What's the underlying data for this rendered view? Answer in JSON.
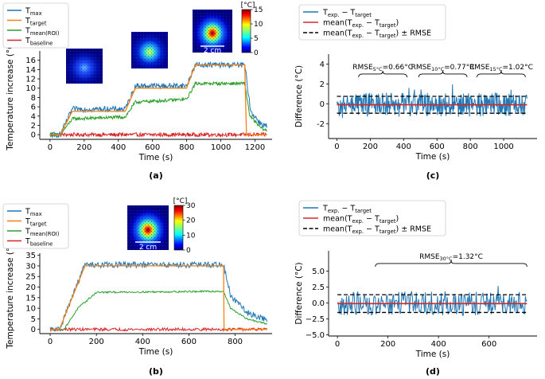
{
  "chart_data": [
    {
      "id": "a",
      "type": "line",
      "panel_label": "(a)",
      "xlabel": "Time (s)",
      "ylabel": "Temperature increase (°C)",
      "xlim": [
        -60,
        1300
      ],
      "ylim": [
        -1,
        18
      ],
      "xticks": [
        0,
        200,
        400,
        600,
        800,
        1000,
        1200
      ],
      "yticks": [
        0,
        2,
        4,
        6,
        8,
        10,
        12,
        14,
        16
      ],
      "legend": [
        {
          "label": "T",
          "sub": "max",
          "color": "#1f77b4"
        },
        {
          "label": "T",
          "sub": "target",
          "color": "#ff7f0e"
        },
        {
          "label": "T",
          "sub": "mean(ROI)",
          "color": "#2ca02c"
        },
        {
          "label": "T",
          "sub": "baseline",
          "color": "#d62728"
        }
      ],
      "series": [
        {
          "name": "T_target",
          "color": "#ff7f0e",
          "noise": 0,
          "points": [
            [
              0,
              0
            ],
            [
              60,
              0
            ],
            [
              130,
              5
            ],
            [
              440,
              5
            ],
            [
              500,
              10
            ],
            [
              800,
              10
            ],
            [
              850,
              15
            ],
            [
              1140,
              15
            ],
            [
              1150,
              0
            ],
            [
              1270,
              0
            ]
          ]
        },
        {
          "name": "T_max",
          "color": "#1f77b4",
          "noise": 0.6,
          "points": [
            [
              0,
              0
            ],
            [
              60,
              0
            ],
            [
              130,
              5.5
            ],
            [
              440,
              5.5
            ],
            [
              500,
              10.5
            ],
            [
              800,
              10.5
            ],
            [
              850,
              15
            ],
            [
              1140,
              15
            ],
            [
              1175,
              5
            ],
            [
              1230,
              2.5
            ],
            [
              1270,
              1.8
            ]
          ]
        },
        {
          "name": "T_mean(ROI)",
          "color": "#2ca02c",
          "noise": 0.35,
          "points": [
            [
              0,
              0
            ],
            [
              60,
              0
            ],
            [
              130,
              3.4
            ],
            [
              440,
              3.8
            ],
            [
              500,
              7
            ],
            [
              800,
              7.6
            ],
            [
              850,
              11
            ],
            [
              1140,
              11
            ],
            [
              1170,
              4
            ],
            [
              1230,
              1.6
            ],
            [
              1270,
              0.8
            ]
          ]
        },
        {
          "name": "T_baseline",
          "color": "#d62728",
          "noise": 0.4,
          "points": [
            [
              0,
              0
            ],
            [
              1270,
              0
            ]
          ]
        }
      ],
      "colorbar": {
        "unit": "[°C]",
        "ticks": [
          0,
          5,
          10,
          15
        ],
        "max": 15
      },
      "thumbnails": [
        {
          "intensity": 0.3
        },
        {
          "intensity": 0.62
        },
        {
          "intensity": 1.0,
          "scalebar": "2 cm"
        }
      ]
    },
    {
      "id": "b",
      "type": "line",
      "panel_label": "(b)",
      "xlabel": "Time (s)",
      "ylabel": "Temperature increase (°C)",
      "xlim": [
        -45,
        960
      ],
      "ylim": [
        -2,
        36
      ],
      "xticks": [
        0,
        200,
        400,
        600,
        800
      ],
      "yticks": [
        0,
        5,
        10,
        15,
        20,
        25,
        30,
        35
      ],
      "legend": [
        {
          "label": "T",
          "sub": "max",
          "color": "#1f77b4"
        },
        {
          "label": "T",
          "sub": "target",
          "color": "#ff7f0e"
        },
        {
          "label": "T",
          "sub": "mean(ROI)",
          "color": "#2ca02c"
        },
        {
          "label": "T",
          "sub": "baseline",
          "color": "#d62728"
        }
      ],
      "series": [
        {
          "name": "T_target",
          "color": "#ff7f0e",
          "noise": 0,
          "points": [
            [
              0,
              0
            ],
            [
              40,
              0
            ],
            [
              150,
              30
            ],
            [
              750,
              30
            ],
            [
              752,
              0
            ],
            [
              940,
              0
            ]
          ]
        },
        {
          "name": "T_max",
          "color": "#1f77b4",
          "noise": 1.4,
          "points": [
            [
              0,
              0
            ],
            [
              40,
              0
            ],
            [
              150,
              30.5
            ],
            [
              750,
              30.5
            ],
            [
              780,
              16
            ],
            [
              850,
              8
            ],
            [
              940,
              4.5
            ]
          ]
        },
        {
          "name": "T_mean(ROI)",
          "color": "#2ca02c",
          "noise": 0.4,
          "points": [
            [
              0,
              0
            ],
            [
              60,
              0
            ],
            [
              120,
              10
            ],
            [
              200,
              17.5
            ],
            [
              750,
              18
            ],
            [
              780,
              10
            ],
            [
              850,
              5
            ],
            [
              940,
              2.5
            ]
          ]
        },
        {
          "name": "T_baseline",
          "color": "#d62728",
          "noise": 0.7,
          "points": [
            [
              0,
              0
            ],
            [
              940,
              0
            ]
          ]
        }
      ],
      "colorbar": {
        "unit": "[°C]",
        "ticks": [
          0,
          10,
          20,
          30
        ],
        "max": 30
      },
      "thumbnails": [
        {
          "intensity": 1.0,
          "scalebar": "2 cm"
        }
      ]
    },
    {
      "id": "c",
      "type": "line",
      "panel_label": "(c)",
      "xlabel": "Time (s)",
      "ylabel": "Difference (°C)",
      "xlim": [
        -50,
        1200
      ],
      "ylim": [
        -3.5,
        5
      ],
      "xticks": [
        0,
        200,
        400,
        600,
        800,
        1000
      ],
      "yticks": [
        -2,
        0,
        2,
        4
      ],
      "legend": [
        {
          "text": "T",
          "parts": [
            {
              "t": "T"
            },
            {
              "t": "exp.",
              "sub": true
            },
            {
              "t": " − T"
            },
            {
              "t": "target",
              "sub": true
            }
          ],
          "color": "#1f77b4",
          "style": "solid"
        },
        {
          "parts": [
            {
              "t": "mean(T"
            },
            {
              "t": "exp.",
              "sub": true
            },
            {
              "t": " − T"
            },
            {
              "t": "target",
              "sub": true
            },
            {
              "t": ")"
            }
          ],
          "color": "#d62728",
          "style": "solid"
        },
        {
          "parts": [
            {
              "t": "mean(T"
            },
            {
              "t": "exp.",
              "sub": true
            },
            {
              "t": " − T"
            },
            {
              "t": "target",
              "sub": true
            },
            {
              "t": ") ± RMSE"
            }
          ],
          "color": "#000000",
          "style": "dashed"
        }
      ],
      "difference": {
        "range": [
          0,
          1140
        ],
        "amplitude": 1.2,
        "mean": -0.1,
        "rmse": 0.85
      },
      "brackets": [
        {
          "x0": 130,
          "x1": 420,
          "y": 3.0,
          "label": "RMSE",
          "sub": "5°C",
          "value": "=0.66°C"
        },
        {
          "x0": 490,
          "x1": 780,
          "y": 3.0,
          "label": "RMSE",
          "sub": "10°C",
          "value": "=0.77°C"
        },
        {
          "x0": 840,
          "x1": 1130,
          "y": 3.0,
          "label": "RMSE",
          "sub": "15°C",
          "value": "=1.02°C"
        }
      ]
    },
    {
      "id": "d",
      "type": "line",
      "panel_label": "(d)",
      "xlabel": "Time (s)",
      "ylabel": "Difference (°C)",
      "xlim": [
        -35,
        790
      ],
      "ylim": [
        -5.2,
        8.2
      ],
      "xticks": [
        0,
        200,
        400,
        600
      ],
      "yticks": [
        -5.0,
        -2.5,
        0.0,
        2.5,
        5.0
      ],
      "ytick_labels": [
        "−5.0",
        "−2.5",
        "0.0",
        "2.5",
        "5.0"
      ],
      "legend": [
        {
          "parts": [
            {
              "t": "T"
            },
            {
              "t": "exp.",
              "sub": true
            },
            {
              "t": " − T"
            },
            {
              "t": "target",
              "sub": true
            }
          ],
          "color": "#1f77b4",
          "style": "solid"
        },
        {
          "parts": [
            {
              "t": "mean(T"
            },
            {
              "t": "exp.",
              "sub": true
            },
            {
              "t": " − T"
            },
            {
              "t": "target",
              "sub": true
            },
            {
              "t": ")"
            }
          ],
          "color": "#d62728",
          "style": "solid"
        },
        {
          "parts": [
            {
              "t": "mean(T"
            },
            {
              "t": "exp.",
              "sub": true
            },
            {
              "t": " − T"
            },
            {
              "t": "target",
              "sub": true
            },
            {
              "t": ") ± RMSE"
            }
          ],
          "color": "#000000",
          "style": "dashed"
        }
      ],
      "difference": {
        "range": [
          0,
          750
        ],
        "amplitude": 1.9,
        "mean": -0.1,
        "rmse": 1.4
      },
      "brackets": [
        {
          "x0": 150,
          "x1": 750,
          "y": 6.2,
          "label": "RMSE",
          "sub": "30°C",
          "value": "=1.32°C"
        }
      ]
    }
  ]
}
